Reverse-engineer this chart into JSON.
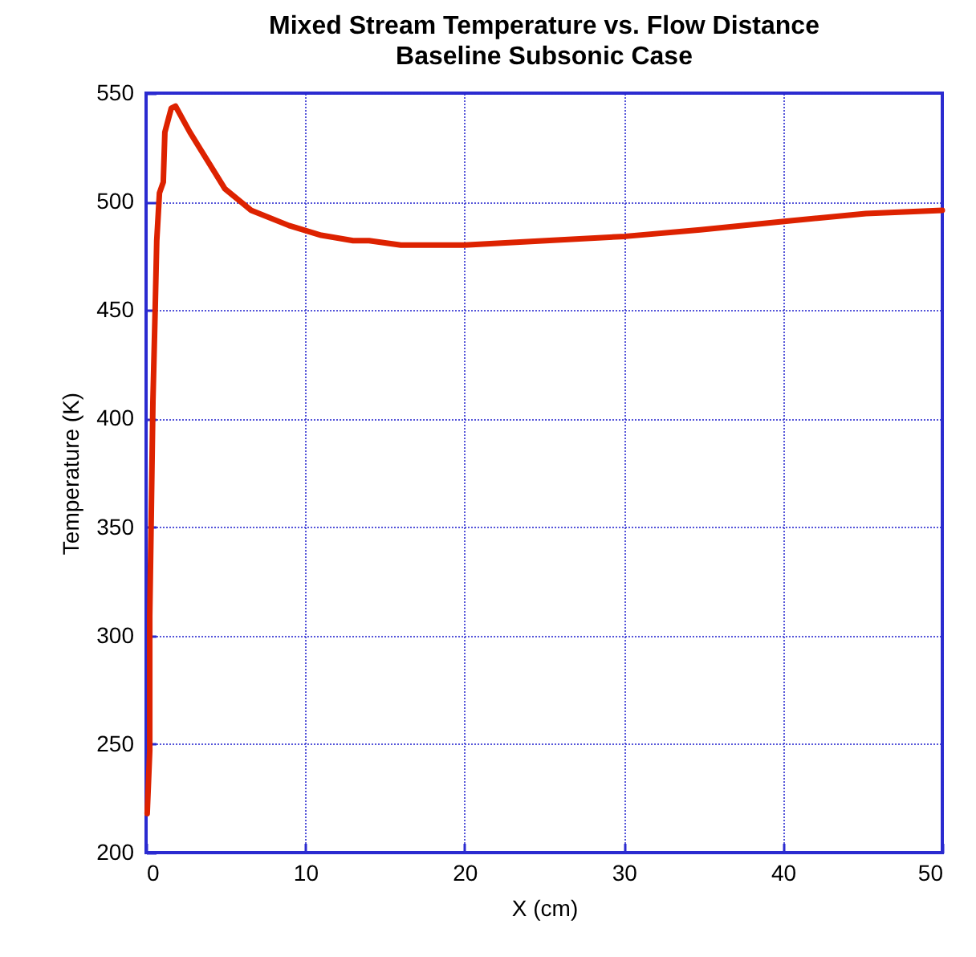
{
  "chart_data": {
    "type": "line",
    "title": "Mixed Stream Temperature vs. Flow Distance",
    "subtitle": "Baseline Subsonic Case",
    "xlabel": "X (cm)",
    "ylabel": "Temperature (K)",
    "xlim": [
      0,
      50
    ],
    "xticks": [
      0,
      10,
      20,
      30,
      40,
      50
    ],
    "ylim": [
      200,
      550
    ],
    "yticks": [
      200,
      250,
      300,
      350,
      400,
      450,
      500,
      550
    ],
    "grid": true,
    "marker": "none",
    "line_style": "solid",
    "series": [
      {
        "color": "#dd2200",
        "x": [
          0.07,
          0.23,
          0.23,
          0.33,
          0.43,
          0.57,
          0.67,
          0.84,
          1.08,
          1.18,
          1.58,
          1.85,
          2.75,
          4.94,
          6.6,
          8.97,
          11,
          13,
          14,
          16,
          20,
          25.1,
          30.1,
          34.8,
          40.2,
          45.2,
          50
        ],
        "values": [
          218,
          247,
          309,
          358,
          408,
          450,
          482,
          504,
          509,
          532,
          543,
          544,
          532,
          506,
          496,
          489,
          484.5,
          482,
          482,
          480,
          480,
          482,
          484,
          487,
          491,
          494.5,
          496
        ]
      }
    ]
  }
}
